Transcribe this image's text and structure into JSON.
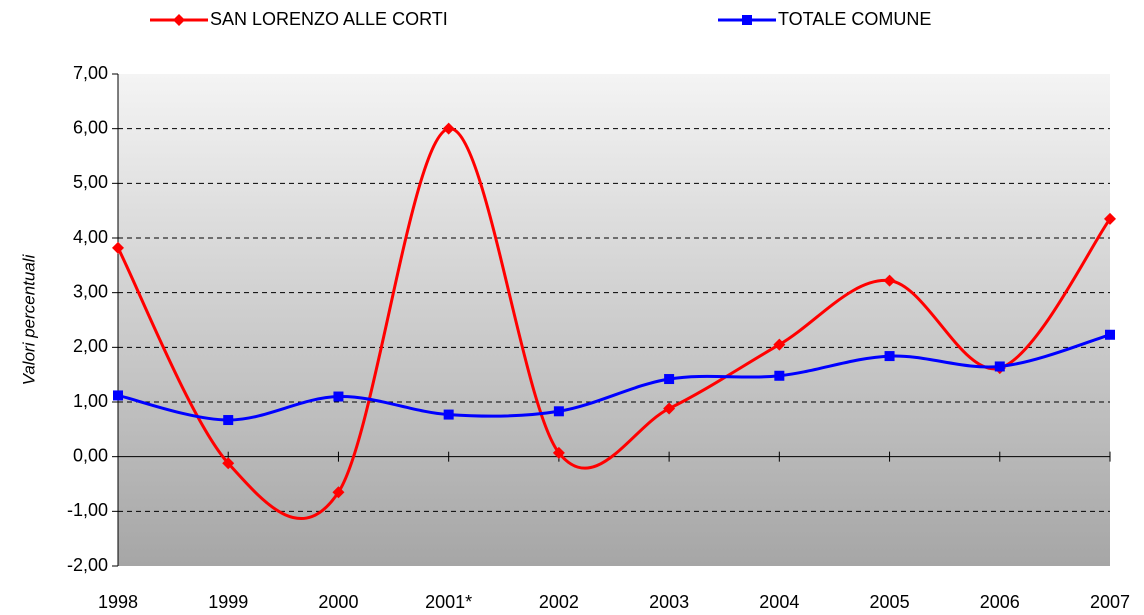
{
  "chart_data": {
    "type": "line",
    "y_label": "Valori percentuali",
    "categories": [
      "1998",
      "1999",
      "2000",
      "2001*",
      "2002",
      "2003",
      "2004",
      "2005",
      "2006",
      "2007"
    ],
    "series": [
      {
        "name": "SAN LORENZO ALLE CORTI",
        "color": "#ff0000",
        "marker": "diamond",
        "values": [
          3.82,
          -0.12,
          -0.65,
          6.0,
          0.07,
          0.88,
          2.05,
          3.22,
          1.62,
          4.35
        ]
      },
      {
        "name": "TOTALE COMUNE",
        "color": "#0000ff",
        "marker": "square",
        "values": [
          1.12,
          0.67,
          1.1,
          0.77,
          0.83,
          1.42,
          1.48,
          1.84,
          1.65,
          2.23
        ]
      }
    ],
    "ylim": [
      -2,
      7
    ],
    "yticks": [
      {
        "value": -2,
        "label": "-2,00"
      },
      {
        "value": -1,
        "label": "-1,00"
      },
      {
        "value": 0,
        "label": "0,00"
      },
      {
        "value": 1,
        "label": "1,00"
      },
      {
        "value": 2,
        "label": "2,00"
      },
      {
        "value": 3,
        "label": "3,00"
      },
      {
        "value": 4,
        "label": "4,00"
      },
      {
        "value": 5,
        "label": "5,00"
      },
      {
        "value": 6,
        "label": "6,00"
      },
      {
        "value": 7,
        "label": "7,00"
      }
    ],
    "grid": true,
    "smooth": true,
    "legend": "top"
  }
}
